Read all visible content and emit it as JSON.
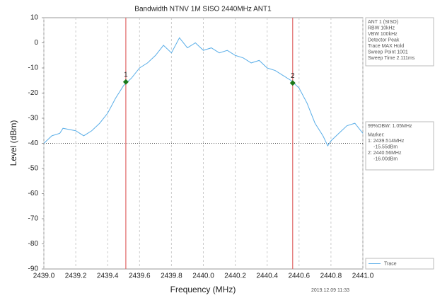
{
  "chart_data": {
    "type": "line",
    "title": "Bandwidth NTNV 1M SISO 2440MHz ANT1",
    "x_label": "Frequency (MHz)",
    "y_label": "Level (dBm)",
    "xlim": [
      2439.0,
      2441.0
    ],
    "ylim": [
      -90,
      10
    ],
    "xticks": [
      {
        "value": 2439.0,
        "label": "2439.0"
      },
      {
        "value": 2439.2,
        "label": "2439.2"
      },
      {
        "value": 2439.4,
        "label": "2439.4"
      },
      {
        "value": 2439.6,
        "label": "2439.6"
      },
      {
        "value": 2439.8,
        "label": "2439.8"
      },
      {
        "value": 2440.0,
        "label": "2440.0"
      },
      {
        "value": 2440.2,
        "label": "2440.2"
      },
      {
        "value": 2440.4,
        "label": "2440.4"
      },
      {
        "value": 2440.6,
        "label": "2440.6"
      },
      {
        "value": 2440.8,
        "label": "2440.8"
      },
      {
        "value": 2441.0,
        "label": "2441.0"
      }
    ],
    "yticks": [
      10,
      0,
      -10,
      -20,
      -30,
      -40,
      -50,
      -60,
      -70,
      -80,
      -90
    ],
    "grid": true,
    "series": [
      {
        "name": "Trace",
        "color": "#5aaee8",
        "x": [
          2439.0,
          2439.05,
          2439.1,
          2439.12,
          2439.2,
          2439.25,
          2439.3,
          2439.35,
          2439.4,
          2439.45,
          2439.5,
          2439.55,
          2439.6,
          2439.65,
          2439.7,
          2439.75,
          2439.8,
          2439.85,
          2439.9,
          2439.95,
          2440.0,
          2440.05,
          2440.1,
          2440.15,
          2440.2,
          2440.25,
          2440.3,
          2440.35,
          2440.4,
          2440.45,
          2440.5,
          2440.55,
          2440.6,
          2440.65,
          2440.7,
          2440.75,
          2440.78,
          2440.8,
          2440.85,
          2440.9,
          2440.95,
          2441.0
        ],
        "values": [
          -40,
          -37,
          -36,
          -34,
          -35,
          -37,
          -35,
          -32,
          -28,
          -22,
          -17,
          -14,
          -10,
          -8,
          -5,
          -1,
          -4,
          2,
          -2,
          0,
          -3,
          -2,
          -4,
          -3,
          -5,
          -6,
          -8,
          -7,
          -10,
          -11,
          -13,
          -15,
          -18,
          -24,
          -32,
          -37,
          -41,
          -39,
          -36,
          -33,
          -32,
          -36
        ]
      }
    ],
    "threshold": -40,
    "markers": [
      {
        "label": "1",
        "x": 2439.514,
        "y": -15.55,
        "color": "#1a7a1a"
      },
      {
        "label": "2",
        "x": 2440.56,
        "y": -16.0,
        "color": "#1a7a1a"
      }
    ],
    "marker_line_color": "#e06666",
    "settings_panel": [
      "ANT 1 (SISO)",
      "RBW 10kHz",
      "VBW 100kHz",
      "Detector Peak",
      "Trace MAX Hold",
      "Sweep Point 1001",
      "Sweep Time 2.111ms"
    ],
    "result_panel": [
      "99%OBW: 1.05MHz",
      "Marker:",
      "1: 2439.514MHz",
      "-15.55dBm",
      "2: 2440.56MHz",
      "-16.00dBm"
    ],
    "timestamp": "2019.12.09 11:33"
  }
}
